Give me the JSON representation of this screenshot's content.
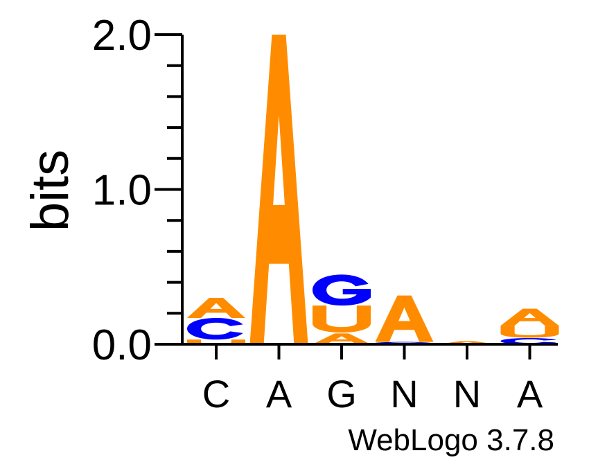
{
  "chart_data": {
    "type": "sequence-logo",
    "ylabel": "bits",
    "ylim": [
      0,
      2.0
    ],
    "yticks": [
      {
        "value": 0.0,
        "label": "0.0"
      },
      {
        "value": 1.0,
        "label": "1.0"
      },
      {
        "value": 2.0,
        "label": "2.0"
      }
    ],
    "y_minor_step": 0.2,
    "categories": [
      "C",
      "A",
      "G",
      "N",
      "N",
      "A"
    ],
    "positions": [
      {
        "label": "C",
        "stack": [
          {
            "letter": "U",
            "bits": 0.03
          },
          {
            "letter": "C",
            "bits": 0.14
          },
          {
            "letter": "A",
            "bits": 0.13
          }
        ]
      },
      {
        "label": "A",
        "stack": [
          {
            "letter": "A",
            "bits": 2.0
          }
        ]
      },
      {
        "label": "G",
        "stack": [
          {
            "letter": "A",
            "bits": 0.07
          },
          {
            "letter": "U",
            "bits": 0.18
          },
          {
            "letter": "G",
            "bits": 0.2
          }
        ]
      },
      {
        "label": "N",
        "stack": [
          {
            "letter": "C",
            "bits": 0.015
          },
          {
            "letter": "A",
            "bits": 0.3
          }
        ]
      },
      {
        "label": "N",
        "stack": [
          {
            "letter": "A",
            "bits": 0.02
          }
        ]
      },
      {
        "label": "A",
        "stack": [
          {
            "letter": "C",
            "bits": 0.04
          },
          {
            "letter": "U",
            "bits": 0.08
          },
          {
            "letter": "A",
            "bits": 0.11
          }
        ]
      }
    ],
    "colors": {
      "A": "#ff8c00",
      "U": "#ff8c00",
      "C": "#0000ff",
      "G": "#0000ff"
    }
  },
  "footer": {
    "credit": "WebLogo 3.7.8"
  }
}
